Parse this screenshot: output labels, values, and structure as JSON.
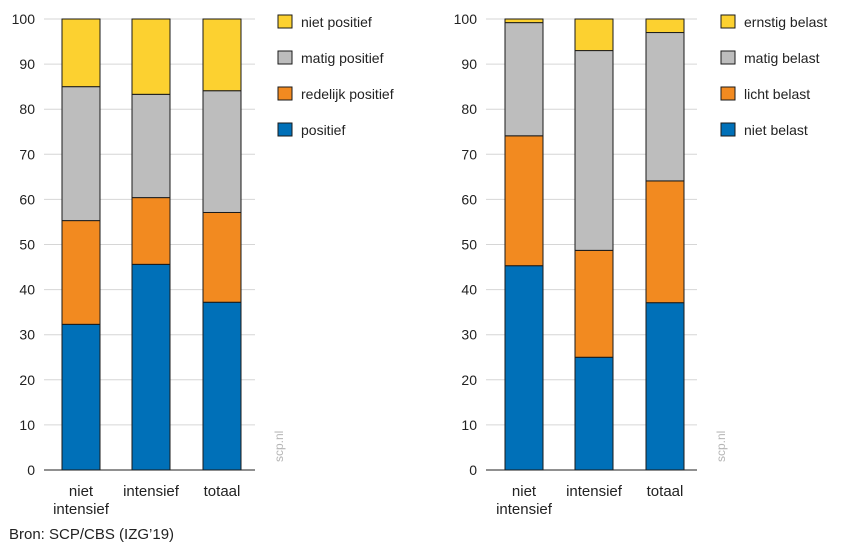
{
  "source": "Bron: SCP/CBS (IZG’19)",
  "watermark": "scp.nl",
  "chart_data": [
    {
      "type": "bar",
      "stacked": true,
      "categories": [
        [
          "niet",
          "intensief"
        ],
        [
          "intensief"
        ],
        [
          "totaal"
        ]
      ],
      "ylim": [
        0,
        100
      ],
      "yticks": [
        0,
        10,
        20,
        30,
        40,
        50,
        60,
        70,
        80,
        90,
        100
      ],
      "grid": true,
      "legend_position": "right",
      "series": [
        {
          "name": "positief",
          "color": "#0070b8",
          "values": [
            32.3,
            45.6,
            37.2
          ]
        },
        {
          "name": "redelijk positief",
          "color": "#f28a20",
          "values": [
            23.0,
            14.8,
            19.9
          ]
        },
        {
          "name": "matig positief",
          "color": "#bdbdbd",
          "values": [
            29.7,
            22.9,
            27.0
          ]
        },
        {
          "name": "niet positief",
          "color": "#fcd130",
          "values": [
            15.0,
            16.7,
            15.9
          ]
        }
      ]
    },
    {
      "type": "bar",
      "stacked": true,
      "categories": [
        [
          "niet",
          "intensief"
        ],
        [
          "intensief"
        ],
        [
          "totaal"
        ]
      ],
      "ylim": [
        0,
        100
      ],
      "yticks": [
        0,
        10,
        20,
        30,
        40,
        50,
        60,
        70,
        80,
        90,
        100
      ],
      "grid": true,
      "legend_position": "right",
      "series": [
        {
          "name": "niet belast",
          "color": "#0070b8",
          "values": [
            45.3,
            25.0,
            37.1
          ]
        },
        {
          "name": "licht belast",
          "color": "#f28a20",
          "values": [
            28.8,
            23.7,
            27.0
          ]
        },
        {
          "name": "matig belast",
          "color": "#bdbdbd",
          "values": [
            25.1,
            44.3,
            32.9
          ]
        },
        {
          "name": "ernstig belast",
          "color": "#fcd130",
          "values": [
            0.8,
            7.0,
            3.0
          ]
        }
      ]
    }
  ]
}
